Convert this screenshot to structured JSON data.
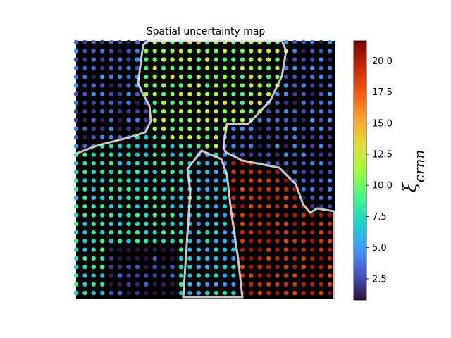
{
  "chart_data": {
    "type": "heatmap",
    "title": "Spatial uncertainty map",
    "grid": {
      "cols": 30,
      "rows": 30
    },
    "colorbar": {
      "label_main": "ξ",
      "label_sub": "crnn",
      "vmin": 0.8,
      "vmax": 21.6,
      "ticks": [
        "2.5",
        "5.0",
        "7.5",
        "10.0",
        "12.5",
        "15.0",
        "17.5",
        "20.0"
      ],
      "tick_values": [
        2.5,
        5.0,
        7.5,
        10.0,
        12.5,
        15.0,
        17.5,
        20.0
      ],
      "colormap": "turbo"
    },
    "regions": [
      {
        "name": "background",
        "mean_value": 3.5
      },
      {
        "name": "upper-center-lobe",
        "mean_value": 11.0
      },
      {
        "name": "left-mid-band",
        "mean_value": 7.5
      },
      {
        "name": "center-column",
        "mean_value": 6.0
      },
      {
        "name": "right-block",
        "mean_value": 19.5
      },
      {
        "name": "bottom-left-pocket",
        "mean_value": 2.0
      }
    ],
    "grid_lines": false,
    "axes_ticks": false
  },
  "colors": {
    "background": "#000000",
    "boundary": "#e8e8e8"
  }
}
